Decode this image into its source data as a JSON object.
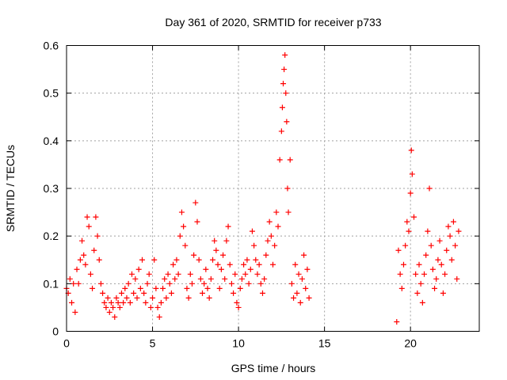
{
  "chart_data": {
    "type": "scatter",
    "title": "Day 361 of 2020, SRMTID for receiver p733",
    "xlabel": "GPS time / hours",
    "ylabel": "SRMTID / TECUs",
    "xlim": [
      0,
      24
    ],
    "ylim": [
      0,
      0.6
    ],
    "x_ticks": [
      0,
      5,
      10,
      15,
      20
    ],
    "y_ticks": [
      0,
      0.1,
      0.2,
      0.3,
      0.4,
      0.5,
      0.6
    ],
    "x_tick_labels": [
      "0",
      "5",
      "10",
      "15",
      "20"
    ],
    "y_tick_labels": [
      "0",
      "0.1",
      "0.2",
      "0.3",
      "0.4",
      "0.5",
      "0.6"
    ],
    "grid": true,
    "marker": "+",
    "series": [
      {
        "name": "SRMTID p733",
        "color": "#ff0000",
        "points": [
          [
            0.0,
            0.09
          ],
          [
            0.1,
            0.08
          ],
          [
            0.2,
            0.11
          ],
          [
            0.3,
            0.06
          ],
          [
            0.4,
            0.1
          ],
          [
            0.5,
            0.04
          ],
          [
            0.6,
            0.13
          ],
          [
            0.7,
            0.1
          ],
          [
            0.8,
            0.15
          ],
          [
            0.9,
            0.19
          ],
          [
            1.0,
            0.16
          ],
          [
            1.1,
            0.14
          ],
          [
            1.2,
            0.24
          ],
          [
            1.3,
            0.22
          ],
          [
            1.4,
            0.12
          ],
          [
            1.5,
            0.09
          ],
          [
            1.6,
            0.17
          ],
          [
            1.7,
            0.24
          ],
          [
            1.8,
            0.2
          ],
          [
            1.9,
            0.15
          ],
          [
            2.0,
            0.1
          ],
          [
            2.1,
            0.08
          ],
          [
            2.2,
            0.06
          ],
          [
            2.3,
            0.05
          ],
          [
            2.4,
            0.07
          ],
          [
            2.5,
            0.04
          ],
          [
            2.6,
            0.06
          ],
          [
            2.7,
            0.05
          ],
          [
            2.8,
            0.03
          ],
          [
            2.9,
            0.07
          ],
          [
            3.0,
            0.06
          ],
          [
            3.1,
            0.05
          ],
          [
            3.2,
            0.08
          ],
          [
            3.3,
            0.06
          ],
          [
            3.4,
            0.09
          ],
          [
            3.5,
            0.07
          ],
          [
            3.6,
            0.1
          ],
          [
            3.7,
            0.06
          ],
          [
            3.8,
            0.12
          ],
          [
            3.9,
            0.08
          ],
          [
            4.0,
            0.11
          ],
          [
            4.1,
            0.07
          ],
          [
            4.2,
            0.13
          ],
          [
            4.3,
            0.09
          ],
          [
            4.4,
            0.15
          ],
          [
            4.5,
            0.08
          ],
          [
            4.6,
            0.06
          ],
          [
            4.7,
            0.1
          ],
          [
            4.8,
            0.12
          ],
          [
            4.9,
            0.05
          ],
          [
            5.0,
            0.07
          ],
          [
            5.1,
            0.15
          ],
          [
            5.2,
            0.09
          ],
          [
            5.3,
            0.05
          ],
          [
            5.4,
            0.03
          ],
          [
            5.5,
            0.06
          ],
          [
            5.6,
            0.09
          ],
          [
            5.7,
            0.11
          ],
          [
            5.8,
            0.07
          ],
          [
            5.9,
            0.12
          ],
          [
            6.0,
            0.1
          ],
          [
            6.1,
            0.08
          ],
          [
            6.2,
            0.14
          ],
          [
            6.3,
            0.11
          ],
          [
            6.4,
            0.15
          ],
          [
            6.5,
            0.12
          ],
          [
            6.6,
            0.2
          ],
          [
            6.7,
            0.25
          ],
          [
            6.8,
            0.22
          ],
          [
            6.9,
            0.18
          ],
          [
            7.0,
            0.09
          ],
          [
            7.1,
            0.07
          ],
          [
            7.2,
            0.12
          ],
          [
            7.3,
            0.1
          ],
          [
            7.4,
            0.16
          ],
          [
            7.5,
            0.27
          ],
          [
            7.6,
            0.23
          ],
          [
            7.7,
            0.15
          ],
          [
            7.8,
            0.11
          ],
          [
            7.9,
            0.08
          ],
          [
            8.0,
            0.1
          ],
          [
            8.1,
            0.13
          ],
          [
            8.2,
            0.09
          ],
          [
            8.3,
            0.07
          ],
          [
            8.4,
            0.11
          ],
          [
            8.5,
            0.15
          ],
          [
            8.6,
            0.19
          ],
          [
            8.7,
            0.17
          ],
          [
            8.8,
            0.14
          ],
          [
            8.9,
            0.09
          ],
          [
            9.0,
            0.13
          ],
          [
            9.1,
            0.16
          ],
          [
            9.2,
            0.11
          ],
          [
            9.3,
            0.19
          ],
          [
            9.4,
            0.22
          ],
          [
            9.5,
            0.14
          ],
          [
            9.6,
            0.1
          ],
          [
            9.7,
            0.08
          ],
          [
            9.8,
            0.12
          ],
          [
            9.9,
            0.06
          ],
          [
            10.0,
            0.05
          ],
          [
            10.1,
            0.09
          ],
          [
            10.2,
            0.11
          ],
          [
            10.3,
            0.14
          ],
          [
            10.4,
            0.12
          ],
          [
            10.5,
            0.15
          ],
          [
            10.6,
            0.1
          ],
          [
            10.7,
            0.13
          ],
          [
            10.8,
            0.21
          ],
          [
            10.9,
            0.18
          ],
          [
            11.0,
            0.15
          ],
          [
            11.1,
            0.12
          ],
          [
            11.2,
            0.14
          ],
          [
            11.3,
            0.1
          ],
          [
            11.4,
            0.08
          ],
          [
            11.5,
            0.11
          ],
          [
            11.6,
            0.16
          ],
          [
            11.7,
            0.19
          ],
          [
            11.8,
            0.23
          ],
          [
            11.9,
            0.2
          ],
          [
            12.0,
            0.14
          ],
          [
            12.1,
            0.18
          ],
          [
            12.2,
            0.25
          ],
          [
            12.3,
            0.22
          ],
          [
            12.4,
            0.36
          ],
          [
            12.5,
            0.42
          ],
          [
            12.55,
            0.47
          ],
          [
            12.6,
            0.52
          ],
          [
            12.65,
            0.55
          ],
          [
            12.7,
            0.58
          ],
          [
            12.75,
            0.5
          ],
          [
            12.8,
            0.44
          ],
          [
            12.85,
            0.3
          ],
          [
            12.9,
            0.25
          ],
          [
            13.0,
            0.36
          ],
          [
            13.1,
            0.1
          ],
          [
            13.2,
            0.07
          ],
          [
            13.3,
            0.14
          ],
          [
            13.4,
            0.08
          ],
          [
            13.5,
            0.12
          ],
          [
            13.6,
            0.06
          ],
          [
            13.7,
            0.11
          ],
          [
            13.8,
            0.16
          ],
          [
            13.9,
            0.09
          ],
          [
            14.0,
            0.13
          ],
          [
            14.1,
            0.07
          ],
          [
            19.2,
            0.02
          ],
          [
            19.3,
            0.17
          ],
          [
            19.4,
            0.12
          ],
          [
            19.5,
            0.09
          ],
          [
            19.6,
            0.14
          ],
          [
            19.7,
            0.18
          ],
          [
            19.8,
            0.23
          ],
          [
            19.9,
            0.21
          ],
          [
            20.0,
            0.29
          ],
          [
            20.05,
            0.38
          ],
          [
            20.1,
            0.33
          ],
          [
            20.2,
            0.24
          ],
          [
            20.3,
            0.12
          ],
          [
            20.4,
            0.08
          ],
          [
            20.5,
            0.14
          ],
          [
            20.6,
            0.1
          ],
          [
            20.7,
            0.06
          ],
          [
            20.8,
            0.12
          ],
          [
            20.9,
            0.16
          ],
          [
            21.0,
            0.21
          ],
          [
            21.1,
            0.3
          ],
          [
            21.2,
            0.18
          ],
          [
            21.3,
            0.13
          ],
          [
            21.4,
            0.09
          ],
          [
            21.5,
            0.11
          ],
          [
            21.6,
            0.15
          ],
          [
            21.7,
            0.19
          ],
          [
            21.8,
            0.14
          ],
          [
            21.9,
            0.08
          ],
          [
            22.0,
            0.12
          ],
          [
            22.1,
            0.17
          ],
          [
            22.2,
            0.22
          ],
          [
            22.3,
            0.2
          ],
          [
            22.4,
            0.15
          ],
          [
            22.5,
            0.23
          ],
          [
            22.6,
            0.18
          ],
          [
            22.7,
            0.11
          ],
          [
            22.8,
            0.21
          ]
        ]
      }
    ]
  }
}
